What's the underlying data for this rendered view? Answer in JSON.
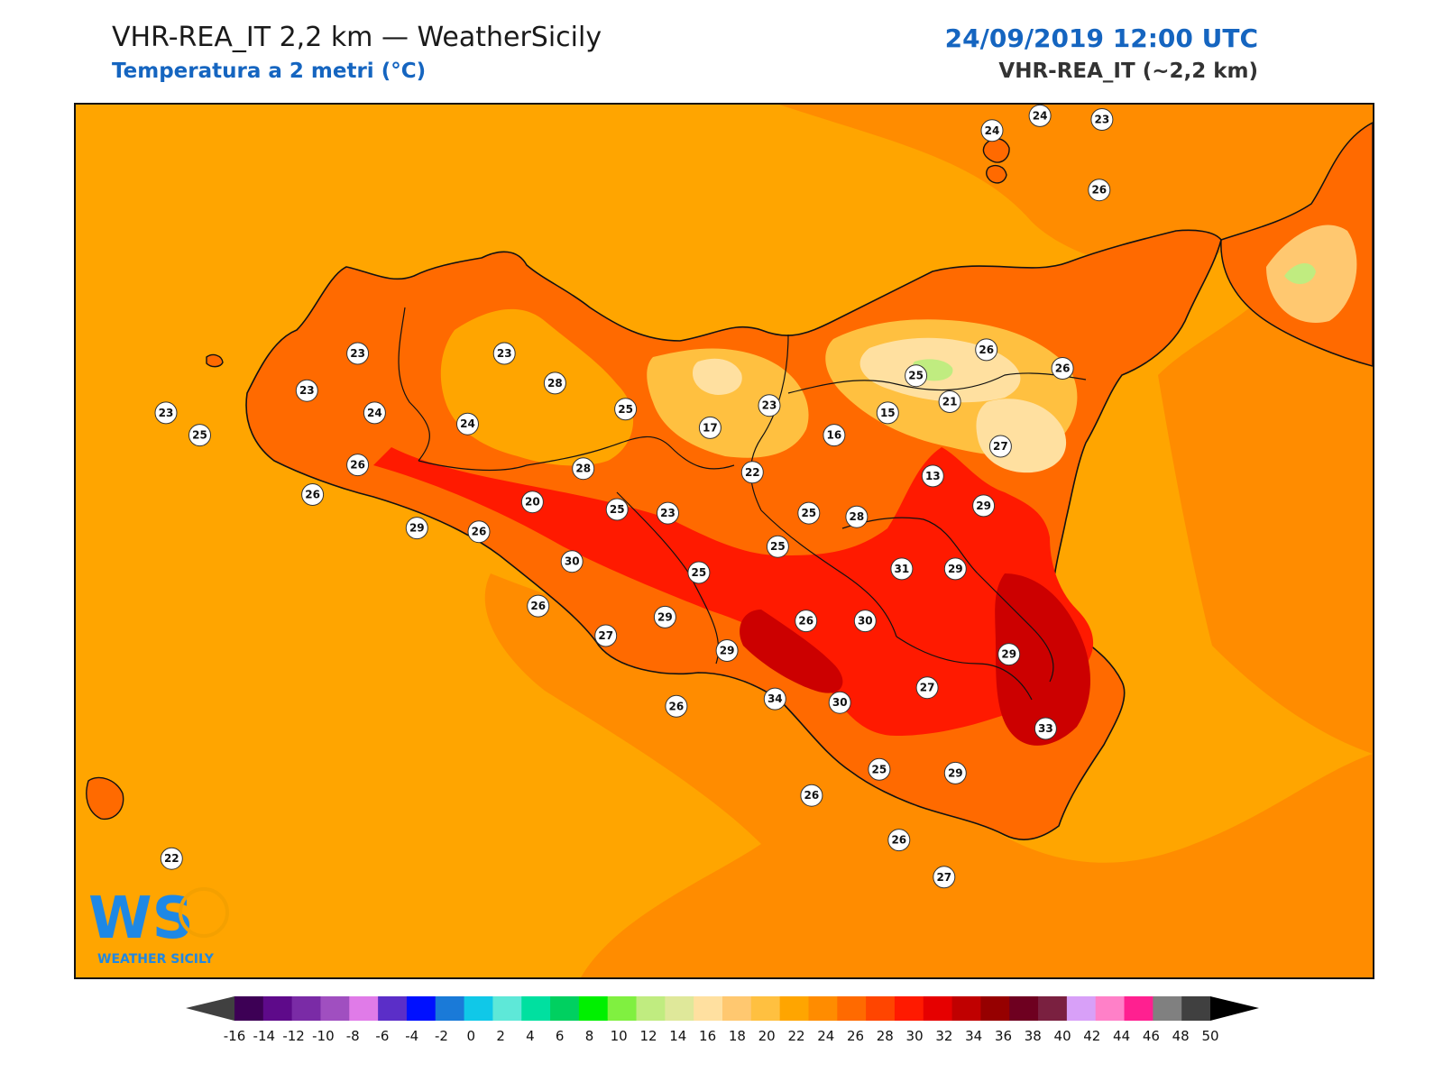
{
  "header": {
    "title": "VHR-REA_IT 2,2 km — WeatherSicily",
    "subtitle": "Temperatura a 2 metri (°C)",
    "datetime": "24/09/2019 12:00 UTC",
    "model": "VHR-REA_IT (~2,2 km)"
  },
  "logo": {
    "initials": "WS",
    "name": "WEATHER SICILY"
  },
  "colors": {
    "sea": "#ffa500",
    "sea_warm": "#ff8c00",
    "land_hot": "#ff4500",
    "land_very_hot": "#ff1a00",
    "land_extreme": "#cc0000",
    "land_mild": "#ffc04a",
    "land_cool": "#ffe29a",
    "brand_blue": "#1565c0"
  },
  "colorbar": {
    "ticks": [
      "-16",
      "-14",
      "-12",
      "-10",
      "-8",
      "-6",
      "-4",
      "-2",
      "0",
      "2",
      "4",
      "6",
      "8",
      "10",
      "12",
      "14",
      "16",
      "18",
      "20",
      "22",
      "24",
      "26",
      "28",
      "30",
      "32",
      "34",
      "36",
      "38",
      "40",
      "42",
      "44",
      "46",
      "48",
      "50"
    ],
    "colors": [
      "#3d0055",
      "#5e0a8a",
      "#7a2ba6",
      "#a04fc0",
      "#e07be8",
      "#5b2ec8",
      "#0010ff",
      "#1a7ad8",
      "#10c8e8",
      "#5ee8d8",
      "#00e0a0",
      "#00d060",
      "#00f000",
      "#80f040",
      "#c0ec80",
      "#dfe89a",
      "#ffe0a0",
      "#ffc870",
      "#ffc040",
      "#ffa500",
      "#ff8c00",
      "#ff6a00",
      "#ff4500",
      "#ff1a00",
      "#e60000",
      "#c00000",
      "#960000",
      "#6e0020",
      "#7a2040",
      "#d8a0f8",
      "#ff80c8",
      "#ff2090",
      "#808080",
      "#404040"
    ],
    "under_color": "#404040",
    "over_color": "#000000"
  },
  "stations": [
    {
      "v": "24",
      "lon": 14.85,
      "lat": 38.78
    },
    {
      "v": "24",
      "lon": 15.02,
      "lat": 38.82
    },
    {
      "v": "23",
      "lon": 15.24,
      "lat": 38.81
    },
    {
      "v": "26",
      "lon": 15.23,
      "lat": 38.62
    },
    {
      "v": "23",
      "lon": 12.6,
      "lat": 38.18
    },
    {
      "v": "23",
      "lon": 13.12,
      "lat": 38.18
    },
    {
      "v": "28",
      "lon": 13.3,
      "lat": 38.1
    },
    {
      "v": "23",
      "lon": 12.42,
      "lat": 38.08
    },
    {
      "v": "25",
      "lon": 12.04,
      "lat": 37.96
    },
    {
      "v": "23",
      "lon": 11.92,
      "lat": 38.02
    },
    {
      "v": "24",
      "lon": 12.66,
      "lat": 38.02
    },
    {
      "v": "24",
      "lon": 12.99,
      "lat": 37.99
    },
    {
      "v": "25",
      "lon": 13.55,
      "lat": 38.03
    },
    {
      "v": "17",
      "lon": 13.85,
      "lat": 37.98
    },
    {
      "v": "23",
      "lon": 14.06,
      "lat": 38.04
    },
    {
      "v": "25",
      "lon": 14.58,
      "lat": 38.12
    },
    {
      "v": "26",
      "lon": 14.83,
      "lat": 38.19
    },
    {
      "v": "26",
      "lon": 15.1,
      "lat": 38.14
    },
    {
      "v": "15",
      "lon": 14.48,
      "lat": 38.02
    },
    {
      "v": "21",
      "lon": 14.7,
      "lat": 38.05
    },
    {
      "v": "16",
      "lon": 14.29,
      "lat": 37.96
    },
    {
      "v": "27",
      "lon": 14.88,
      "lat": 37.93
    },
    {
      "v": "26",
      "lon": 12.6,
      "lat": 37.88
    },
    {
      "v": "28",
      "lon": 13.4,
      "lat": 37.87
    },
    {
      "v": "22",
      "lon": 14.0,
      "lat": 37.86
    },
    {
      "v": "13",
      "lon": 14.64,
      "lat": 37.85
    },
    {
      "v": "26",
      "lon": 12.44,
      "lat": 37.8
    },
    {
      "v": "20",
      "lon": 13.22,
      "lat": 37.78
    },
    {
      "v": "25",
      "lon": 13.52,
      "lat": 37.76
    },
    {
      "v": "23",
      "lon": 13.7,
      "lat": 37.75
    },
    {
      "v": "25",
      "lon": 14.2,
      "lat": 37.75
    },
    {
      "v": "29",
      "lon": 14.82,
      "lat": 37.77
    },
    {
      "v": "29",
      "lon": 12.81,
      "lat": 37.71
    },
    {
      "v": "26",
      "lon": 13.03,
      "lat": 37.7
    },
    {
      "v": "28",
      "lon": 14.37,
      "lat": 37.74
    },
    {
      "v": "30",
      "lon": 13.36,
      "lat": 37.62
    },
    {
      "v": "25",
      "lon": 14.09,
      "lat": 37.66
    },
    {
      "v": "25",
      "lon": 13.81,
      "lat": 37.59
    },
    {
      "v": "31",
      "lon": 14.53,
      "lat": 37.6
    },
    {
      "v": "29",
      "lon": 14.72,
      "lat": 37.6
    },
    {
      "v": "26",
      "lon": 13.24,
      "lat": 37.5
    },
    {
      "v": "29",
      "lon": 13.69,
      "lat": 37.47
    },
    {
      "v": "26",
      "lon": 14.19,
      "lat": 37.46
    },
    {
      "v": "30",
      "lon": 14.4,
      "lat": 37.46
    },
    {
      "v": "27",
      "lon": 13.48,
      "lat": 37.42
    },
    {
      "v": "29",
      "lon": 13.91,
      "lat": 37.38
    },
    {
      "v": "29",
      "lon": 14.91,
      "lat": 37.37
    },
    {
      "v": "27",
      "lon": 14.62,
      "lat": 37.28
    },
    {
      "v": "34",
      "lon": 14.08,
      "lat": 37.25
    },
    {
      "v": "30",
      "lon": 14.31,
      "lat": 37.24
    },
    {
      "v": "26",
      "lon": 13.73,
      "lat": 37.23
    },
    {
      "v": "33",
      "lon": 15.04,
      "lat": 37.17
    },
    {
      "v": "25",
      "lon": 14.45,
      "lat": 37.06
    },
    {
      "v": "29",
      "lon": 14.72,
      "lat": 37.05
    },
    {
      "v": "26",
      "lon": 14.21,
      "lat": 36.99
    },
    {
      "v": "22",
      "lon": 11.94,
      "lat": 36.82
    },
    {
      "v": "26",
      "lon": 14.52,
      "lat": 36.87
    },
    {
      "v": "27",
      "lon": 14.68,
      "lat": 36.77
    }
  ]
}
